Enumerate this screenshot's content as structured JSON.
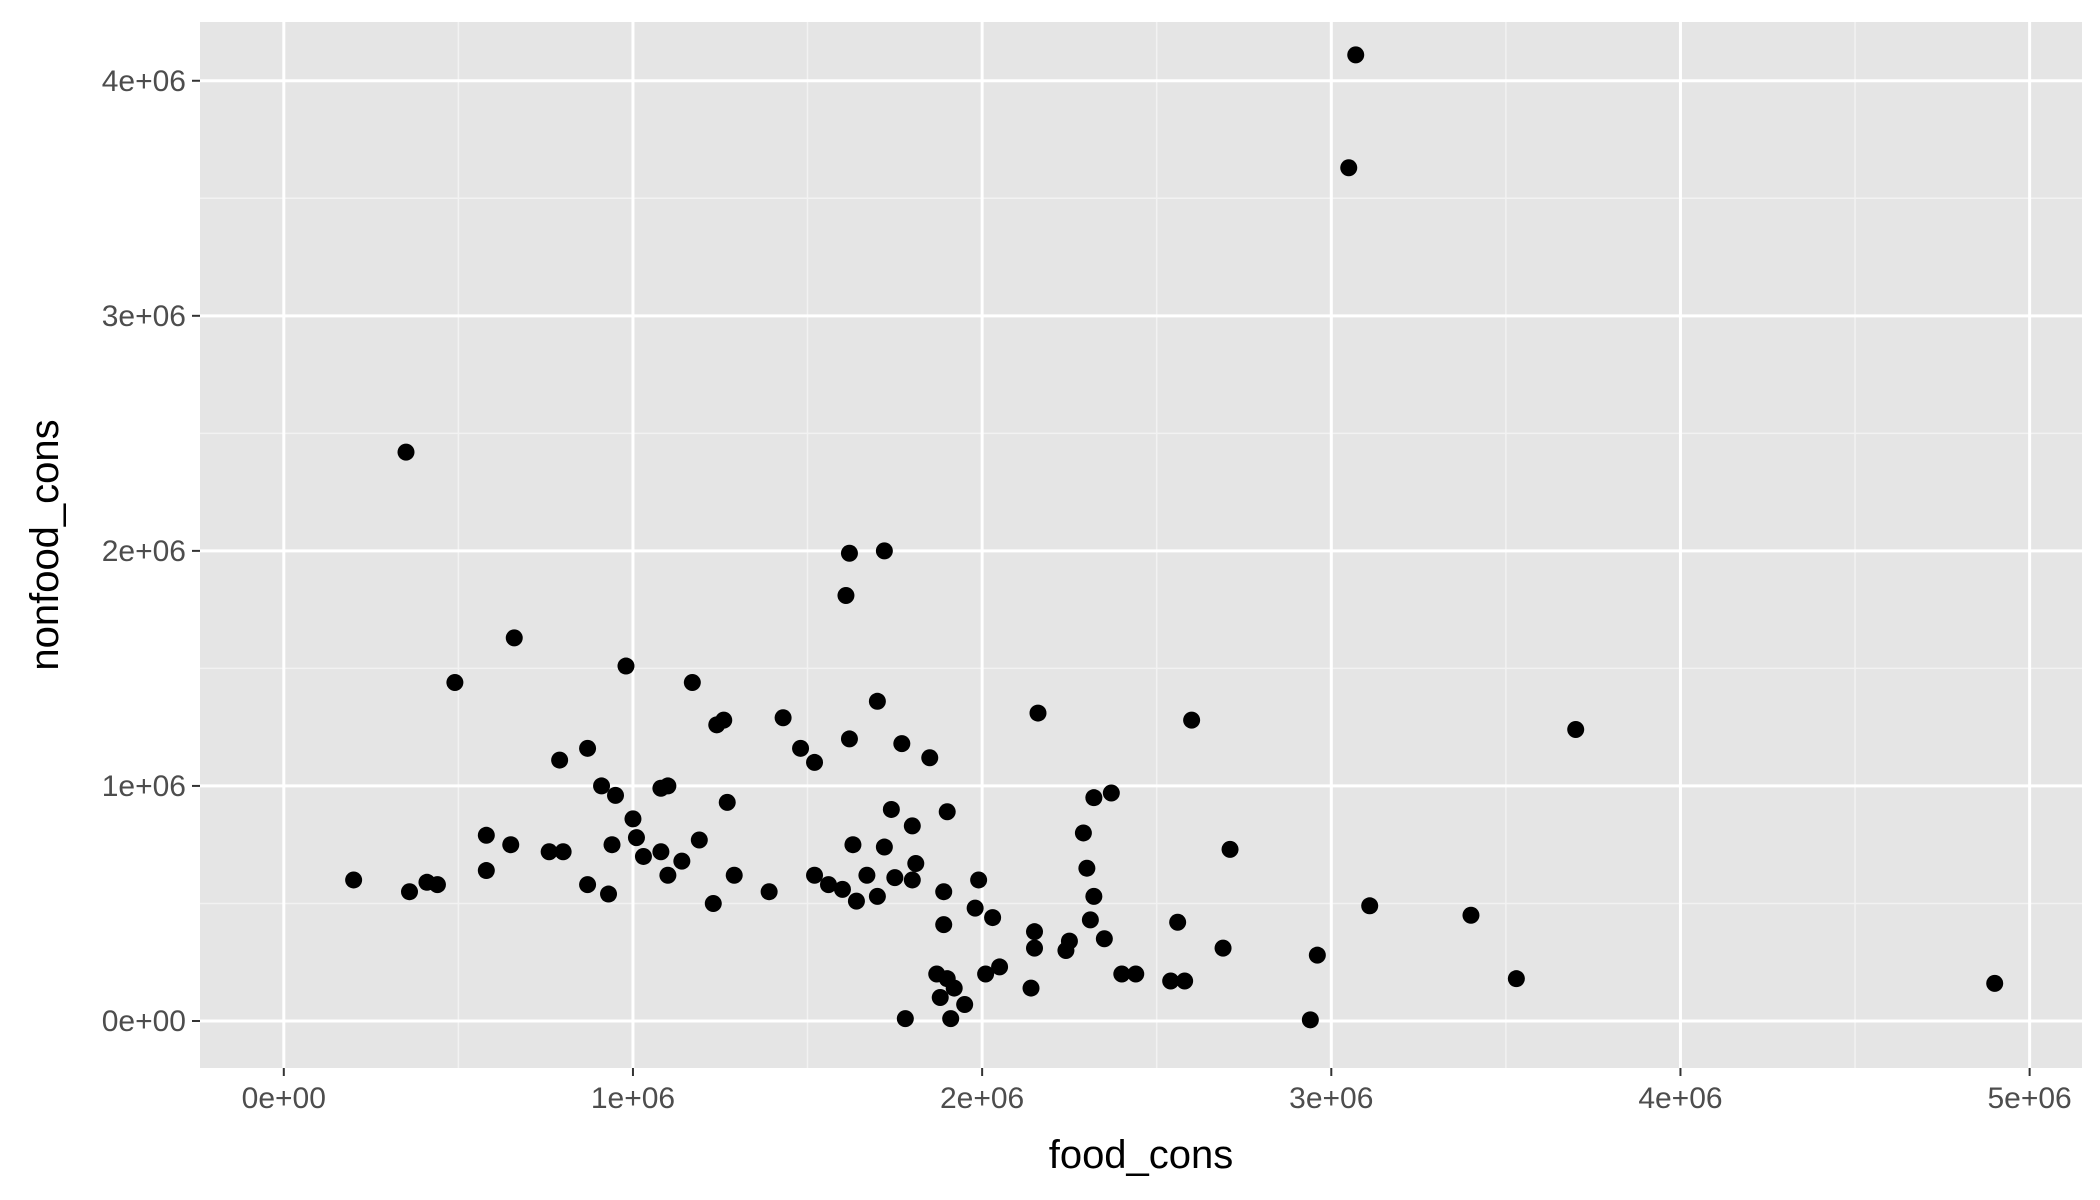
{
  "colors": {
    "panel_background": "#e5e5e5",
    "grid_major": "#ffffff",
    "grid_minor": "#f2f2f2",
    "point": "#000000",
    "tick_text": "#4d4d4d",
    "tick_mark": "#333333",
    "axis_title": "#000000"
  },
  "chart_data": {
    "type": "scatter",
    "title": "",
    "xlabel": "food_cons",
    "ylabel": "nonfood_cons",
    "xlim": [
      -240000,
      5150000
    ],
    "ylim": [
      -200000,
      4250000
    ],
    "x_ticks": [
      0,
      1000000,
      2000000,
      3000000,
      4000000,
      5000000
    ],
    "x_tick_labels": [
      "0e+00",
      "1e+06",
      "2e+06",
      "3e+06",
      "4e+06",
      "5e+06"
    ],
    "y_ticks": [
      0,
      1000000,
      2000000,
      3000000,
      4000000
    ],
    "y_tick_labels": [
      "0e+00",
      "1e+06",
      "2e+06",
      "3e+06",
      "4e+06"
    ],
    "grid": true,
    "legend": "none",
    "points": [
      [
        3070000,
        4110000
      ],
      [
        3050000,
        3630000
      ],
      [
        350000,
        2420000
      ],
      [
        1620000,
        1990000
      ],
      [
        1720000,
        2000000
      ],
      [
        1610000,
        1810000
      ],
      [
        660000,
        1630000
      ],
      [
        980000,
        1510000
      ],
      [
        490000,
        1440000
      ],
      [
        1170000,
        1440000
      ],
      [
        1700000,
        1360000
      ],
      [
        2160000,
        1310000
      ],
      [
        2600000,
        1280000
      ],
      [
        1240000,
        1260000
      ],
      [
        1260000,
        1280000
      ],
      [
        1430000,
        1290000
      ],
      [
        3700000,
        1240000
      ],
      [
        1620000,
        1200000
      ],
      [
        1770000,
        1180000
      ],
      [
        870000,
        1160000
      ],
      [
        1480000,
        1160000
      ],
      [
        1520000,
        1100000
      ],
      [
        1850000,
        1120000
      ],
      [
        790000,
        1110000
      ],
      [
        1080000,
        990000
      ],
      [
        1100000,
        1000000
      ],
      [
        910000,
        1000000
      ],
      [
        950000,
        960000
      ],
      [
        1270000,
        930000
      ],
      [
        2320000,
        950000
      ],
      [
        2370000,
        970000
      ],
      [
        1740000,
        900000
      ],
      [
        1900000,
        890000
      ],
      [
        1000000,
        860000
      ],
      [
        1800000,
        830000
      ],
      [
        2290000,
        800000
      ],
      [
        580000,
        790000
      ],
      [
        1010000,
        780000
      ],
      [
        1190000,
        770000
      ],
      [
        650000,
        750000
      ],
      [
        940000,
        750000
      ],
      [
        1630000,
        750000
      ],
      [
        1720000,
        740000
      ],
      [
        2710000,
        730000
      ],
      [
        760000,
        720000
      ],
      [
        800000,
        720000
      ],
      [
        1080000,
        720000
      ],
      [
        1030000,
        700000
      ],
      [
        1140000,
        680000
      ],
      [
        1810000,
        670000
      ],
      [
        2300000,
        650000
      ],
      [
        580000,
        640000
      ],
      [
        1100000,
        620000
      ],
      [
        1290000,
        620000
      ],
      [
        1670000,
        620000
      ],
      [
        1520000,
        620000
      ],
      [
        1750000,
        610000
      ],
      [
        200000,
        600000
      ],
      [
        410000,
        590000
      ],
      [
        440000,
        580000
      ],
      [
        870000,
        580000
      ],
      [
        1560000,
        580000
      ],
      [
        1990000,
        600000
      ],
      [
        1800000,
        600000
      ],
      [
        1390000,
        550000
      ],
      [
        1600000,
        560000
      ],
      [
        1890000,
        550000
      ],
      [
        360000,
        550000
      ],
      [
        930000,
        540000
      ],
      [
        1700000,
        530000
      ],
      [
        2320000,
        530000
      ],
      [
        1640000,
        510000
      ],
      [
        3110000,
        490000
      ],
      [
        1230000,
        500000
      ],
      [
        1980000,
        480000
      ],
      [
        2030000,
        440000
      ],
      [
        3400000,
        450000
      ],
      [
        2560000,
        420000
      ],
      [
        2310000,
        430000
      ],
      [
        1890000,
        410000
      ],
      [
        2150000,
        380000
      ],
      [
        2350000,
        350000
      ],
      [
        2250000,
        340000
      ],
      [
        2690000,
        310000
      ],
      [
        2960000,
        280000
      ],
      [
        2150000,
        310000
      ],
      [
        2240000,
        300000
      ],
      [
        2400000,
        200000
      ],
      [
        2440000,
        200000
      ],
      [
        2050000,
        230000
      ],
      [
        2010000,
        200000
      ],
      [
        3530000,
        180000
      ],
      [
        2540000,
        170000
      ],
      [
        2580000,
        170000
      ],
      [
        4900000,
        160000
      ],
      [
        2140000,
        140000
      ],
      [
        1870000,
        200000
      ],
      [
        1900000,
        180000
      ],
      [
        1920000,
        140000
      ],
      [
        1880000,
        100000
      ],
      [
        1950000,
        70000
      ],
      [
        1910000,
        10000
      ],
      [
        2940000,
        5000
      ],
      [
        1780000,
        10000
      ]
    ]
  }
}
